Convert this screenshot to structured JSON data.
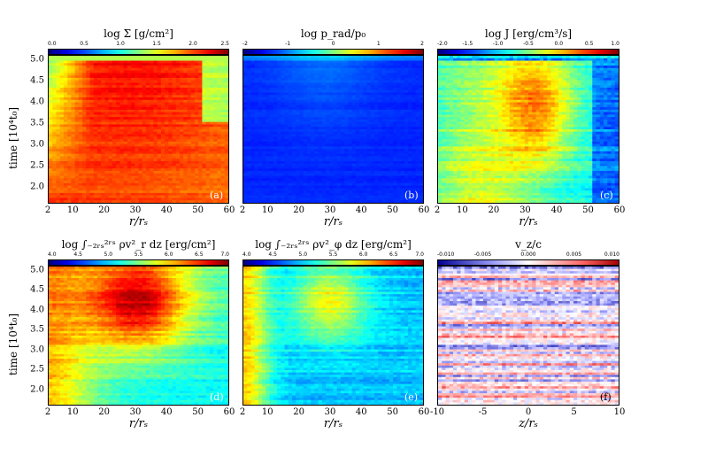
{
  "figure": {
    "ylabel_top": "time [10⁴t₀]",
    "ylabel_bottom": "time [10⁴t₀]"
  },
  "chart_data": [
    {
      "id": "a",
      "type": "heatmap",
      "panel_label": "(a)",
      "title": "log Σ [g/cm²]",
      "xlabel": "r/rₛ",
      "xlim": [
        2,
        60
      ],
      "xticks": [
        "2",
        "10",
        "20",
        "30",
        "40",
        "50",
        "60"
      ],
      "ylim": [
        1.6,
        5.1
      ],
      "yticks": [
        "2.0",
        "2.5",
        "3.0",
        "3.5",
        "4.0",
        "4.5",
        "5.0"
      ],
      "colorbar": {
        "range": [
          0.0,
          2.5
        ],
        "ticks": [
          "0.0",
          "0.5",
          "1.0",
          "1.5",
          "2.0",
          "2.5"
        ],
        "colormap": "jet"
      }
    },
    {
      "id": "b",
      "type": "heatmap",
      "panel_label": "(b)",
      "title": "log p_rad/p₀",
      "xlabel": "r/rₛ",
      "xlim": [
        2,
        60
      ],
      "xticks": [
        "2",
        "10",
        "20",
        "30",
        "40",
        "50",
        "60"
      ],
      "ylim": [
        1.6,
        5.1
      ],
      "yticks": [],
      "colorbar": {
        "range": [
          -2,
          2
        ],
        "ticks": [
          "-2",
          "-1",
          "0",
          "1",
          "2"
        ],
        "colormap": "jet"
      }
    },
    {
      "id": "c",
      "type": "heatmap",
      "panel_label": "(c)",
      "title": "log J [erg/cm³/s]",
      "xlabel": "r/rₛ",
      "xlim": [
        2,
        60
      ],
      "xticks": [
        "2",
        "10",
        "20",
        "30",
        "40",
        "50",
        "60"
      ],
      "ylim": [
        1.6,
        5.1
      ],
      "yticks": [],
      "colorbar": {
        "range": [
          -2.0,
          1.0
        ],
        "ticks": [
          "-2.0",
          "-1.5",
          "-1.0",
          "-0.5",
          "0.0",
          "0.5",
          "1.0"
        ],
        "colormap": "jet"
      }
    },
    {
      "id": "d",
      "type": "heatmap",
      "panel_label": "(d)",
      "title": "log ∫₋₂ᵣₛ²ʳˢ ρv²_r dz [erg/cm²]",
      "xlabel": "r/rₛ",
      "xlim": [
        2,
        60
      ],
      "xticks": [
        "2",
        "10",
        "20",
        "30",
        "40",
        "50",
        "60"
      ],
      "ylim": [
        1.6,
        5.1
      ],
      "yticks": [
        "2.0",
        "2.5",
        "3.0",
        "3.5",
        "4.0",
        "4.5",
        "5.0"
      ],
      "colorbar": {
        "range": [
          4.0,
          7.0
        ],
        "ticks": [
          "4.0",
          "4.5",
          "5.0",
          "5.5",
          "6.0",
          "6.5",
          "7.0"
        ],
        "colormap": "jet"
      }
    },
    {
      "id": "e",
      "type": "heatmap",
      "panel_label": "(e)",
      "title": "log ∫₋₂ᵣₛ²ʳˢ ρv²_φ dz [erg/cm²]",
      "xlabel": "r/rₛ",
      "xlim": [
        2,
        60
      ],
      "xticks": [
        "2",
        "10",
        "20",
        "30",
        "40",
        "50",
        "60"
      ],
      "ylim": [
        1.6,
        5.1
      ],
      "yticks": [],
      "colorbar": {
        "range": [
          4.0,
          7.0
        ],
        "ticks": [
          "4.0",
          "4.5",
          "5.0",
          "5.5",
          "6.0",
          "6.5",
          "7.0"
        ],
        "colormap": "jet"
      }
    },
    {
      "id": "f",
      "type": "heatmap",
      "panel_label": "(f)",
      "title": "v_z/c",
      "xlabel": "z/rₛ",
      "xlim": [
        -10,
        10
      ],
      "xticks": [
        "-10",
        "-5",
        "0",
        "5",
        "10"
      ],
      "ylim": [
        1.6,
        5.1
      ],
      "yticks": [],
      "colorbar": {
        "range": [
          -0.01,
          0.01
        ],
        "ticks": [
          "-0.010",
          "-0.005",
          "0.000",
          "0.005",
          "0.010"
        ],
        "colormap": "seismic"
      }
    }
  ]
}
